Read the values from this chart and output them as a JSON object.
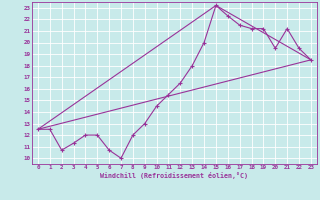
{
  "xlabel": "Windchill (Refroidissement éolien,°C)",
  "xlim": [
    -0.5,
    23.5
  ],
  "ylim": [
    9.5,
    23.5
  ],
  "xticks": [
    0,
    1,
    2,
    3,
    4,
    5,
    6,
    7,
    8,
    9,
    10,
    11,
    12,
    13,
    14,
    15,
    16,
    17,
    18,
    19,
    20,
    21,
    22,
    23
  ],
  "yticks": [
    10,
    11,
    12,
    13,
    14,
    15,
    16,
    17,
    18,
    19,
    20,
    21,
    22,
    23
  ],
  "bg_color": "#c8eaea",
  "grid_color": "#aacccc",
  "line_color": "#993399",
  "line1_x": [
    0,
    1,
    2,
    3,
    4,
    5,
    6,
    7,
    8,
    9,
    10,
    11,
    12,
    13,
    14,
    15,
    16,
    17,
    18,
    19,
    20,
    21,
    22,
    23
  ],
  "line1_y": [
    12.5,
    12.5,
    10.7,
    11.3,
    12.0,
    12.0,
    10.7,
    10.0,
    12.0,
    13.0,
    14.5,
    15.5,
    16.5,
    18.0,
    20.0,
    23.2,
    22.3,
    21.5,
    21.2,
    21.2,
    19.5,
    21.2,
    19.5,
    18.5
  ],
  "line2_x": [
    0,
    23
  ],
  "line2_y": [
    12.5,
    18.5
  ],
  "line3_x": [
    0,
    15,
    23
  ],
  "line3_y": [
    12.5,
    23.2,
    18.5
  ],
  "tick_fontsize": 4.2,
  "xlabel_fontsize": 4.8
}
